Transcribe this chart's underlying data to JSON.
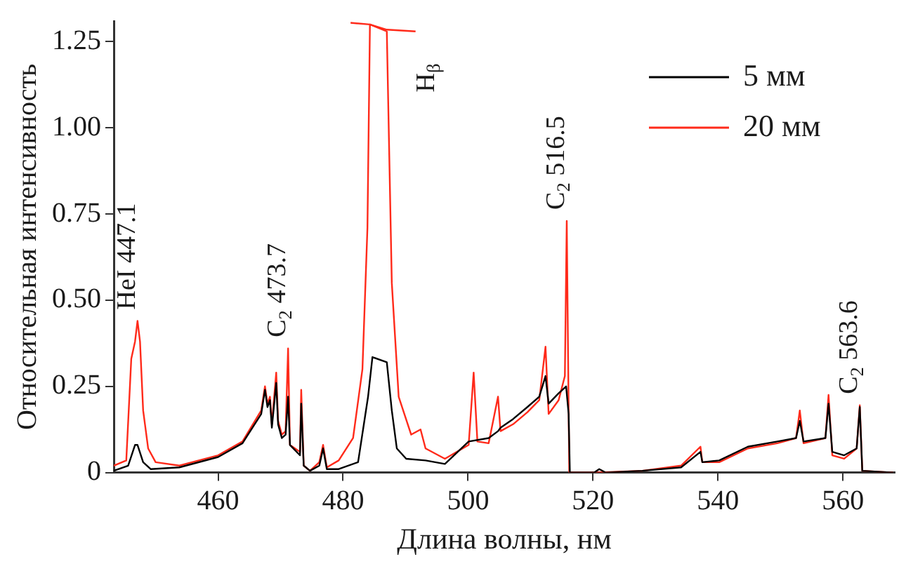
{
  "chart_data": {
    "type": "line",
    "xlabel": "Длина волны, нм",
    "ylabel": "Относительная интенсивность",
    "xlim": [
      443.3,
      568.3
    ],
    "xticks": [
      460,
      480,
      500,
      520,
      540,
      560
    ],
    "ylim": [
      0,
      1.31
    ],
    "yticks": [
      0,
      {
        "value": 0.25,
        "label": "0.25"
      },
      {
        "value": 0.5,
        "label": "0.50"
      },
      {
        "value": 0.75,
        "label": "0.75"
      },
      {
        "value": 1,
        "label": "1.00"
      },
      1.25
    ],
    "grid": false,
    "legend": "top right",
    "marker": "none",
    "line_style": "solid",
    "series": [
      {
        "name": "5 мм",
        "color": "#000000",
        "x": [
          443.3,
          445.6,
          446.7,
          447.1,
          448,
          449.2,
          453.8,
          460,
          463.9,
          466.9,
          467.5,
          467.9,
          468.3,
          468.6,
          469.3,
          469.6,
          470.2,
          470.8,
          471.2,
          471.5,
          472.3,
          473.1,
          473.3,
          473.7,
          474.7,
          476.2,
          476.8,
          477.4,
          479.3,
          482.4,
          484,
          484.7,
          487,
          487.8,
          488.6,
          490.1,
          493.2,
          496.3,
          500.1,
          503.3,
          504.8,
          505.2,
          507.2,
          509.5,
          511.4,
          512.4,
          512.9,
          514.5,
          515.7,
          516.1,
          516.3,
          520.2,
          521,
          522,
          527.9,
          534.1,
          537.2,
          537.5,
          540.2,
          544.8,
          549.5,
          552.5,
          553.1,
          553.7,
          557.2,
          557.7,
          558.3,
          560.2,
          562.2,
          562.7,
          563.1,
          568
        ],
        "values": [
          0.005,
          0.02,
          0.08,
          0.08,
          0.03,
          0.01,
          0.015,
          0.045,
          0.085,
          0.17,
          0.24,
          0.19,
          0.21,
          0.13,
          0.26,
          0.14,
          0.1,
          0.11,
          0.22,
          0.08,
          0.065,
          0.05,
          0.2,
          0.02,
          0.005,
          0.02,
          0.07,
          0.01,
          0.01,
          0.03,
          0.22,
          0.335,
          0.32,
          0.18,
          0.07,
          0.04,
          0.035,
          0.025,
          0.09,
          0.1,
          0.12,
          0.13,
          0.155,
          0.19,
          0.22,
          0.28,
          0.2,
          0.23,
          0.25,
          0.17,
          0,
          0,
          0.01,
          0,
          0.005,
          0.015,
          0.06,
          0.03,
          0.035,
          0.075,
          0.09,
          0.1,
          0.15,
          0.09,
          0.1,
          0.2,
          0.06,
          0.05,
          0.07,
          0.19,
          0.005,
          0
        ]
      },
      {
        "name": "20 мм",
        "color": "#ff2a1a",
        "x": [
          443.3,
          445.3,
          446.1,
          446.7,
          447.1,
          447.5,
          448,
          448.8,
          450,
          453.8,
          460,
          463.9,
          466.9,
          467.5,
          467.9,
          468.3,
          468.6,
          469.3,
          469.6,
          470.2,
          470.8,
          471.2,
          471.5,
          472.3,
          473.1,
          473.3,
          473.7,
          474.7,
          476.2,
          476.8,
          477.4,
          479.3,
          481.6,
          483.1,
          483.9,
          484.3,
          487,
          487.8,
          488.9,
          490.9,
          492.4,
          493.2,
          496.3,
          500.1,
          500.9,
          501.5,
          503.3,
          504.8,
          505.2,
          507.2,
          509.5,
          511.4,
          512.4,
          512.9,
          514.5,
          515.5,
          515.8,
          516.2,
          520.2,
          527.9,
          534.1,
          537.2,
          537.5,
          540.2,
          544.8,
          549.5,
          552.5,
          553.1,
          553.7,
          557.2,
          557.7,
          558.3,
          560.2,
          562.2,
          562.7,
          563.1,
          568
        ],
        "values": [
          0.02,
          0.035,
          0.33,
          0.38,
          0.44,
          0.38,
          0.18,
          0.07,
          0.03,
          0.02,
          0.05,
          0.09,
          0.18,
          0.25,
          0.2,
          0.22,
          0.14,
          0.29,
          0.15,
          0.11,
          0.12,
          0.36,
          0.08,
          0.07,
          0.06,
          0.24,
          0.02,
          0.005,
          0.03,
          0.08,
          0.015,
          0.035,
          0.1,
          0.3,
          0.71,
          1.3,
          1.28,
          0.55,
          0.22,
          0.11,
          0.125,
          0.07,
          0.04,
          0.08,
          0.29,
          0.09,
          0.085,
          0.22,
          0.12,
          0.14,
          0.175,
          0.21,
          0.365,
          0.17,
          0.21,
          0.28,
          0.73,
          0,
          0,
          0.005,
          0.02,
          0.075,
          0.03,
          0.03,
          0.07,
          0.085,
          0.1,
          0.18,
          0.085,
          0.1,
          0.225,
          0.05,
          0.04,
          0.07,
          0.195,
          0.005,
          0
        ]
      },
      {
        "color": "#ff2a1a",
        "x": [
          481.2,
          484.3,
          487,
          491.6
        ],
        "values": [
          1.305,
          1.3,
          1.285,
          1.28
        ]
      }
    ],
    "annotations": [
      {
        "text": "HeI 447.1",
        "x": 447.1,
        "y": 0.44
      },
      {
        "text": "C$_{2}$ 473.7",
        "x": 471.2,
        "y": 0.36
      },
      {
        "text": "H$_{β}$",
        "x": 491.6,
        "y": 1.28
      },
      {
        "text": "C$_{2}$ 516.5",
        "x": 515.8,
        "y": 0.73
      },
      {
        "text": "C$_{2}$ 563.6",
        "x": 562.7,
        "y": 0.195
      }
    ]
  }
}
